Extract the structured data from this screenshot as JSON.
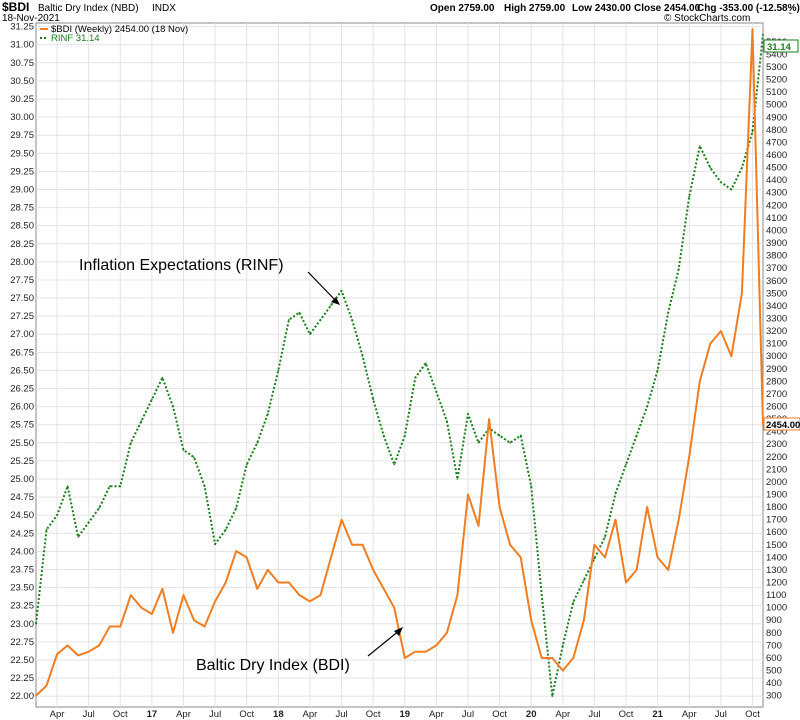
{
  "header": {
    "symbol": "$BDI",
    "name": "Baltic Dry Index (NBD)",
    "exchange": "INDX",
    "date": "18-Nov-2021",
    "open": "Open 2759.00",
    "high": "High 2759.00",
    "low": "Low 2430.00",
    "close": "Close 2454.00",
    "chg": "Chg -353.00 (-12.58%)",
    "watermark": "© StockCharts.com"
  },
  "legend": {
    "bdi": "$BDI (Weekly) 2454.00 (18 Nov)",
    "rinf": "RINF 31.14"
  },
  "annotations": {
    "rinf": "Inflation Expectations (RINF)",
    "bdi": "Baltic Dry Index (BDI)"
  },
  "last_values": {
    "bdi": "2454.00",
    "rinf": "31.14"
  },
  "colors": {
    "bdi": "#f07d21",
    "rinf": "#1a7d1a",
    "grid": "#e3e3e3",
    "frame": "#888888"
  },
  "chart_data": {
    "type": "line",
    "x_range": [
      "2016-02",
      "2021-11"
    ],
    "x_ticks": [
      "Apr",
      "Jul",
      "Oct",
      "17",
      "Apr",
      "Jul",
      "Oct",
      "18",
      "Apr",
      "Jul",
      "Oct",
      "19",
      "Apr",
      "Jul",
      "Oct",
      "20",
      "Apr",
      "Jul",
      "Oct",
      "21",
      "Apr",
      "Jul",
      "Oct"
    ],
    "left_axis": {
      "series": "RINF",
      "ylim": [
        21.85,
        31.3
      ],
      "ticks": [
        "22.00",
        "22.25",
        "22.50",
        "22.75",
        "23.00",
        "23.25",
        "23.50",
        "23.75",
        "24.00",
        "24.25",
        "24.50",
        "24.75",
        "25.00",
        "25.25",
        "25.50",
        "25.75",
        "26.00",
        "26.25",
        "26.50",
        "26.75",
        "27.00",
        "27.25",
        "27.50",
        "27.75",
        "28.00",
        "28.25",
        "28.50",
        "28.75",
        "29.00",
        "29.25",
        "29.50",
        "29.75",
        "30.00",
        "30.25",
        "30.50",
        "30.75",
        "31.00",
        "31.25"
      ]
    },
    "right_axis": {
      "series": "BDI",
      "ylim": [
        210,
        5650
      ],
      "ticks": [
        "300",
        "400",
        "500",
        "600",
        "700",
        "800",
        "900",
        "1000",
        "1100",
        "1200",
        "1300",
        "1400",
        "1500",
        "1600",
        "1700",
        "1800",
        "1900",
        "2000",
        "2100",
        "2200",
        "2300",
        "2400",
        "2500",
        "2600",
        "2700",
        "2800",
        "2900",
        "3000",
        "3100",
        "3200",
        "3300",
        "3400",
        "3500",
        "3600",
        "3700",
        "3800",
        "3900",
        "4000",
        "4100",
        "4200",
        "4300",
        "4400",
        "4500",
        "4600",
        "4700",
        "4800",
        "4900",
        "5000",
        "5100",
        "5200",
        "5300",
        "5400",
        "5500"
      ]
    },
    "series": [
      {
        "name": "RINF",
        "axis": "left",
        "style": "dotted",
        "x": [
          "2016-02",
          "2016-03",
          "2016-04",
          "2016-05",
          "2016-06",
          "2016-07",
          "2016-08",
          "2016-09",
          "2016-10",
          "2016-11",
          "2016-12",
          "2017-01",
          "2017-02",
          "2017-03",
          "2017-04",
          "2017-05",
          "2017-06",
          "2017-07",
          "2017-08",
          "2017-09",
          "2017-10",
          "2017-11",
          "2017-12",
          "2018-01",
          "2018-02",
          "2018-03",
          "2018-04",
          "2018-05",
          "2018-06",
          "2018-07",
          "2018-08",
          "2018-09",
          "2018-10",
          "2018-11",
          "2018-12",
          "2019-01",
          "2019-02",
          "2019-03",
          "2019-04",
          "2019-05",
          "2019-06",
          "2019-07",
          "2019-08",
          "2019-09",
          "2019-10",
          "2019-11",
          "2019-12",
          "2020-01",
          "2020-02",
          "2020-03",
          "2020-04",
          "2020-05",
          "2020-06",
          "2020-07",
          "2020-08",
          "2020-09",
          "2020-10",
          "2020-11",
          "2020-12",
          "2021-01",
          "2021-02",
          "2021-03",
          "2021-04",
          "2021-05",
          "2021-06",
          "2021-07",
          "2021-08",
          "2021-09",
          "2021-10",
          "2021-11"
        ],
        "values": [
          23.0,
          24.3,
          24.5,
          24.9,
          24.2,
          24.4,
          24.6,
          24.9,
          24.9,
          25.5,
          25.8,
          26.1,
          26.4,
          26.0,
          25.4,
          25.3,
          24.9,
          24.1,
          24.3,
          24.6,
          25.2,
          25.5,
          25.9,
          26.5,
          27.2,
          27.3,
          27.0,
          27.2,
          27.4,
          27.6,
          27.2,
          26.7,
          26.1,
          25.6,
          25.2,
          25.6,
          26.4,
          26.6,
          26.2,
          25.8,
          25.0,
          25.9,
          25.5,
          25.7,
          25.6,
          25.5,
          25.6,
          24.9,
          23.4,
          22.0,
          22.7,
          23.3,
          23.6,
          23.9,
          24.2,
          24.8,
          25.2,
          25.6,
          26.0,
          26.5,
          27.3,
          27.9,
          28.9,
          29.6,
          29.3,
          29.1,
          29.0,
          29.3,
          29.8,
          31.14
        ]
      },
      {
        "name": "BDI",
        "axis": "right",
        "style": "solid",
        "x": [
          "2016-02",
          "2016-03",
          "2016-04",
          "2016-05",
          "2016-06",
          "2016-07",
          "2016-08",
          "2016-09",
          "2016-10",
          "2016-11",
          "2016-12",
          "2017-01",
          "2017-02",
          "2017-03",
          "2017-04",
          "2017-05",
          "2017-06",
          "2017-07",
          "2017-08",
          "2017-09",
          "2017-10",
          "2017-11",
          "2017-12",
          "2018-01",
          "2018-02",
          "2018-03",
          "2018-04",
          "2018-05",
          "2018-06",
          "2018-07",
          "2018-08",
          "2018-09",
          "2018-10",
          "2018-11",
          "2018-12",
          "2019-01",
          "2019-02",
          "2019-03",
          "2019-04",
          "2019-05",
          "2019-06",
          "2019-07",
          "2019-08",
          "2019-09",
          "2019-10",
          "2019-11",
          "2019-12",
          "2020-01",
          "2020-02",
          "2020-03",
          "2020-04",
          "2020-05",
          "2020-06",
          "2020-07",
          "2020-08",
          "2020-09",
          "2020-10",
          "2020-11",
          "2020-12",
          "2021-01",
          "2021-02",
          "2021-03",
          "2021-04",
          "2021-05",
          "2021-06",
          "2021-07",
          "2021-08",
          "2021-09",
          "2021-10",
          "2021-11"
        ],
        "values": [
          300,
          380,
          630,
          700,
          620,
          650,
          700,
          850,
          850,
          1100,
          1000,
          950,
          1150,
          800,
          1100,
          900,
          850,
          1050,
          1200,
          1450,
          1400,
          1150,
          1300,
          1200,
          1200,
          1100,
          1050,
          1100,
          1400,
          1700,
          1500,
          1500,
          1300,
          1150,
          1000,
          600,
          650,
          650,
          700,
          800,
          1100,
          1900,
          1650,
          2500,
          1800,
          1500,
          1400,
          900,
          600,
          600,
          500,
          600,
          900,
          1500,
          1400,
          1700,
          1200,
          1300,
          1800,
          1400,
          1300,
          1700,
          2200,
          2800,
          3100,
          3200,
          3000,
          3500,
          5600,
          2454
        ]
      }
    ]
  }
}
